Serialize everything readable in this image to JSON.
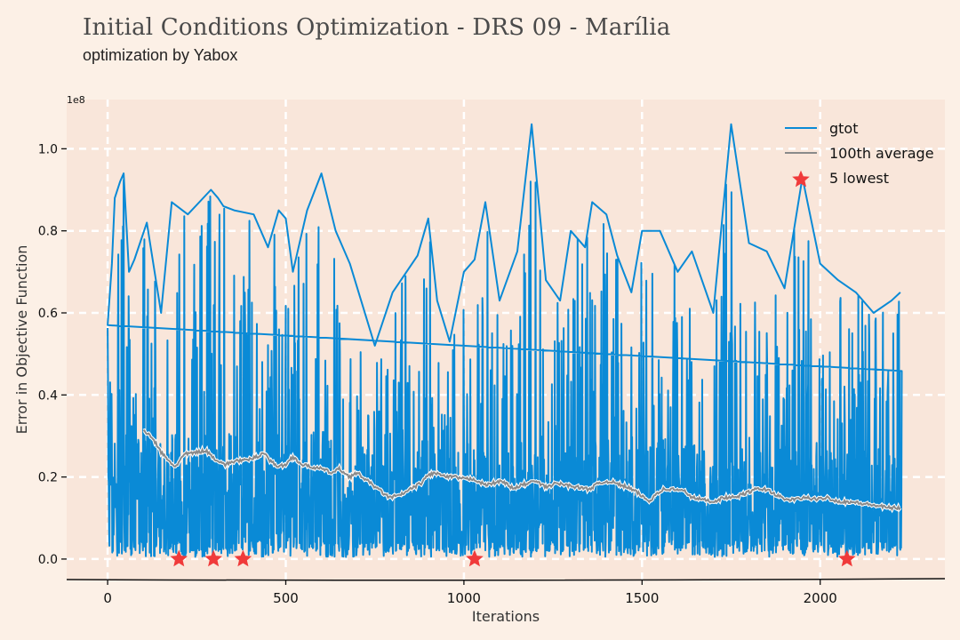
{
  "title": "Initial Conditions Optimization - DRS 09 - Marília",
  "subtitle": "optimization by Yabox",
  "colors": {
    "background": "#fcf0e6",
    "plot_background": "#f9e6da",
    "grid": "#ffffff",
    "gtot": "#0a8ad6",
    "average": "#8a8a8a",
    "lowest": "#f03a3a"
  },
  "chart_data": {
    "type": "line",
    "xlabel": "Iterations",
    "ylabel": "Error in Objective Function",
    "y_offset_label": "1e8",
    "xlim": [
      -115,
      2350
    ],
    "ylim": [
      -0.05,
      1.12
    ],
    "x_ticks": [
      0,
      500,
      1000,
      1500,
      2000
    ],
    "y_ticks": [
      0.0,
      0.2,
      0.4,
      0.6,
      0.8,
      1.0
    ],
    "x_tick_labels": [
      "0",
      "500",
      "1000",
      "1500",
      "2000"
    ],
    "y_tick_labels": [
      "0.0",
      "0.2",
      "0.4",
      "0.6",
      "0.8",
      "1.0"
    ],
    "grid": true,
    "legend_position": "top-right",
    "series": [
      {
        "name": "gtot",
        "kind": "line",
        "n_points": 2230,
        "peaks": [
          [
            0,
            0.57
          ],
          [
            12,
            0.72
          ],
          [
            20,
            0.88
          ],
          [
            35,
            0.92
          ],
          [
            45,
            0.94
          ],
          [
            60,
            0.7
          ],
          [
            75,
            0.73
          ],
          [
            110,
            0.82
          ],
          [
            150,
            0.6
          ],
          [
            180,
            0.87
          ],
          [
            225,
            0.84
          ],
          [
            290,
            0.9
          ],
          [
            310,
            0.88
          ],
          [
            325,
            0.86
          ],
          [
            355,
            0.85
          ],
          [
            410,
            0.84
          ],
          [
            450,
            0.76
          ],
          [
            480,
            0.85
          ],
          [
            500,
            0.83
          ],
          [
            520,
            0.7
          ],
          [
            560,
            0.85
          ],
          [
            600,
            0.94
          ],
          [
            640,
            0.8
          ],
          [
            680,
            0.72
          ],
          [
            750,
            0.52
          ],
          [
            800,
            0.65
          ],
          [
            870,
            0.74
          ],
          [
            900,
            0.83
          ],
          [
            925,
            0.63
          ],
          [
            960,
            0.53
          ],
          [
            1000,
            0.7
          ],
          [
            1030,
            0.73
          ],
          [
            1060,
            0.87
          ],
          [
            1100,
            0.63
          ],
          [
            1150,
            0.75
          ],
          [
            1190,
            1.06
          ],
          [
            1230,
            0.68
          ],
          [
            1270,
            0.63
          ],
          [
            1300,
            0.8
          ],
          [
            1340,
            0.76
          ],
          [
            1360,
            0.87
          ],
          [
            1400,
            0.84
          ],
          [
            1430,
            0.74
          ],
          [
            1470,
            0.65
          ],
          [
            1500,
            0.8
          ],
          [
            1550,
            0.8
          ],
          [
            1600,
            0.7
          ],
          [
            1640,
            0.75
          ],
          [
            1700,
            0.6
          ],
          [
            1750,
            1.06
          ],
          [
            1800,
            0.77
          ],
          [
            1850,
            0.75
          ],
          [
            1900,
            0.66
          ],
          [
            1950,
            0.93
          ],
          [
            2000,
            0.72
          ],
          [
            2050,
            0.68
          ],
          [
            2100,
            0.65
          ],
          [
            2150,
            0.6
          ],
          [
            2200,
            0.63
          ],
          [
            2225,
            0.65
          ]
        ]
      },
      {
        "name": "100th average",
        "kind": "line",
        "points": [
          [
            100,
            0.315
          ],
          [
            130,
            0.29
          ],
          [
            150,
            0.26
          ],
          [
            170,
            0.24
          ],
          [
            190,
            0.225
          ],
          [
            215,
            0.255
          ],
          [
            250,
            0.26
          ],
          [
            275,
            0.265
          ],
          [
            300,
            0.245
          ],
          [
            330,
            0.23
          ],
          [
            360,
            0.24
          ],
          [
            390,
            0.24
          ],
          [
            420,
            0.25
          ],
          [
            440,
            0.26
          ],
          [
            455,
            0.24
          ],
          [
            480,
            0.225
          ],
          [
            500,
            0.23
          ],
          [
            520,
            0.25
          ],
          [
            545,
            0.23
          ],
          [
            570,
            0.225
          ],
          [
            600,
            0.22
          ],
          [
            630,
            0.21
          ],
          [
            650,
            0.22
          ],
          [
            680,
            0.2
          ],
          [
            700,
            0.21
          ],
          [
            730,
            0.19
          ],
          [
            760,
            0.17
          ],
          [
            790,
            0.15
          ],
          [
            820,
            0.155
          ],
          [
            850,
            0.17
          ],
          [
            880,
            0.185
          ],
          [
            900,
            0.205
          ],
          [
            920,
            0.21
          ],
          [
            950,
            0.2
          ],
          [
            975,
            0.2
          ],
          [
            1000,
            0.195
          ],
          [
            1030,
            0.195
          ],
          [
            1060,
            0.18
          ],
          [
            1080,
            0.185
          ],
          [
            1110,
            0.19
          ],
          [
            1140,
            0.17
          ],
          [
            1160,
            0.18
          ],
          [
            1200,
            0.19
          ],
          [
            1230,
            0.175
          ],
          [
            1260,
            0.185
          ],
          [
            1290,
            0.18
          ],
          [
            1320,
            0.175
          ],
          [
            1350,
            0.17
          ],
          [
            1380,
            0.185
          ],
          [
            1410,
            0.19
          ],
          [
            1440,
            0.18
          ],
          [
            1460,
            0.175
          ],
          [
            1490,
            0.16
          ],
          [
            1520,
            0.14
          ],
          [
            1540,
            0.16
          ],
          [
            1560,
            0.17
          ],
          [
            1590,
            0.17
          ],
          [
            1620,
            0.165
          ],
          [
            1640,
            0.15
          ],
          [
            1670,
            0.145
          ],
          [
            1700,
            0.14
          ],
          [
            1730,
            0.15
          ],
          [
            1760,
            0.15
          ],
          [
            1790,
            0.16
          ],
          [
            1820,
            0.17
          ],
          [
            1850,
            0.17
          ],
          [
            1870,
            0.16
          ],
          [
            1900,
            0.145
          ],
          [
            1930,
            0.145
          ],
          [
            1960,
            0.15
          ],
          [
            1990,
            0.145
          ],
          [
            2020,
            0.15
          ],
          [
            2050,
            0.14
          ],
          [
            2080,
            0.14
          ],
          [
            2120,
            0.135
          ],
          [
            2160,
            0.13
          ],
          [
            2190,
            0.125
          ],
          [
            2225,
            0.125
          ]
        ]
      },
      {
        "name": "5 lowest",
        "kind": "scatter",
        "points": [
          [
            200,
            0.0
          ],
          [
            297,
            0.0
          ],
          [
            380,
            0.0
          ],
          [
            1030,
            0.0
          ],
          [
            2075,
            0.0
          ]
        ]
      }
    ]
  }
}
